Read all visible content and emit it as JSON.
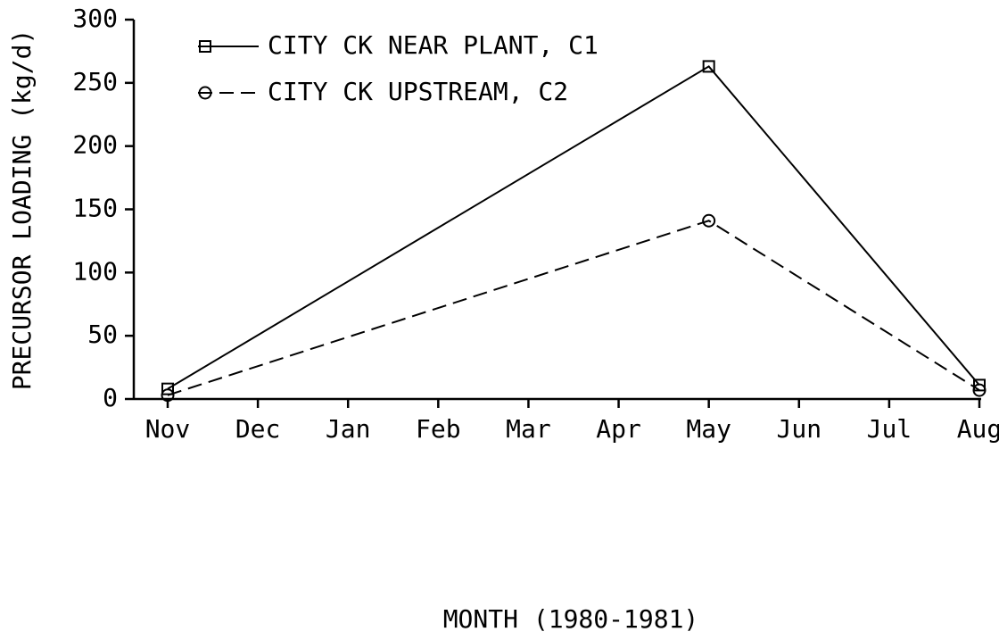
{
  "chart_data": {
    "type": "line",
    "x_label": "MONTH (1980-1981)",
    "y_label": "PRECURSOR LOADING (kg/d)",
    "categories": [
      "Nov",
      "Dec",
      "Jan",
      "Feb",
      "Mar",
      "Apr",
      "May",
      "Jun",
      "Jul",
      "Aug"
    ],
    "series": [
      {
        "name": "CITY CK NEAR PLANT, C1",
        "color": "#000000",
        "marker": "square",
        "dash": "solid",
        "x": [
          "Nov",
          "May",
          "Aug"
        ],
        "values": [
          8,
          263,
          11
        ]
      },
      {
        "name": "CITY CK UPSTREAM, C2",
        "color": "#000000",
        "marker": "circle",
        "dash": "dashed",
        "x": [
          "Nov",
          "May",
          "Aug"
        ],
        "values": [
          3,
          141,
          7
        ]
      }
    ],
    "ylim": [
      0,
      300
    ],
    "yticks": [
      0,
      50,
      100,
      150,
      200,
      250,
      300
    ],
    "grid": false,
    "legend": "upper left"
  }
}
